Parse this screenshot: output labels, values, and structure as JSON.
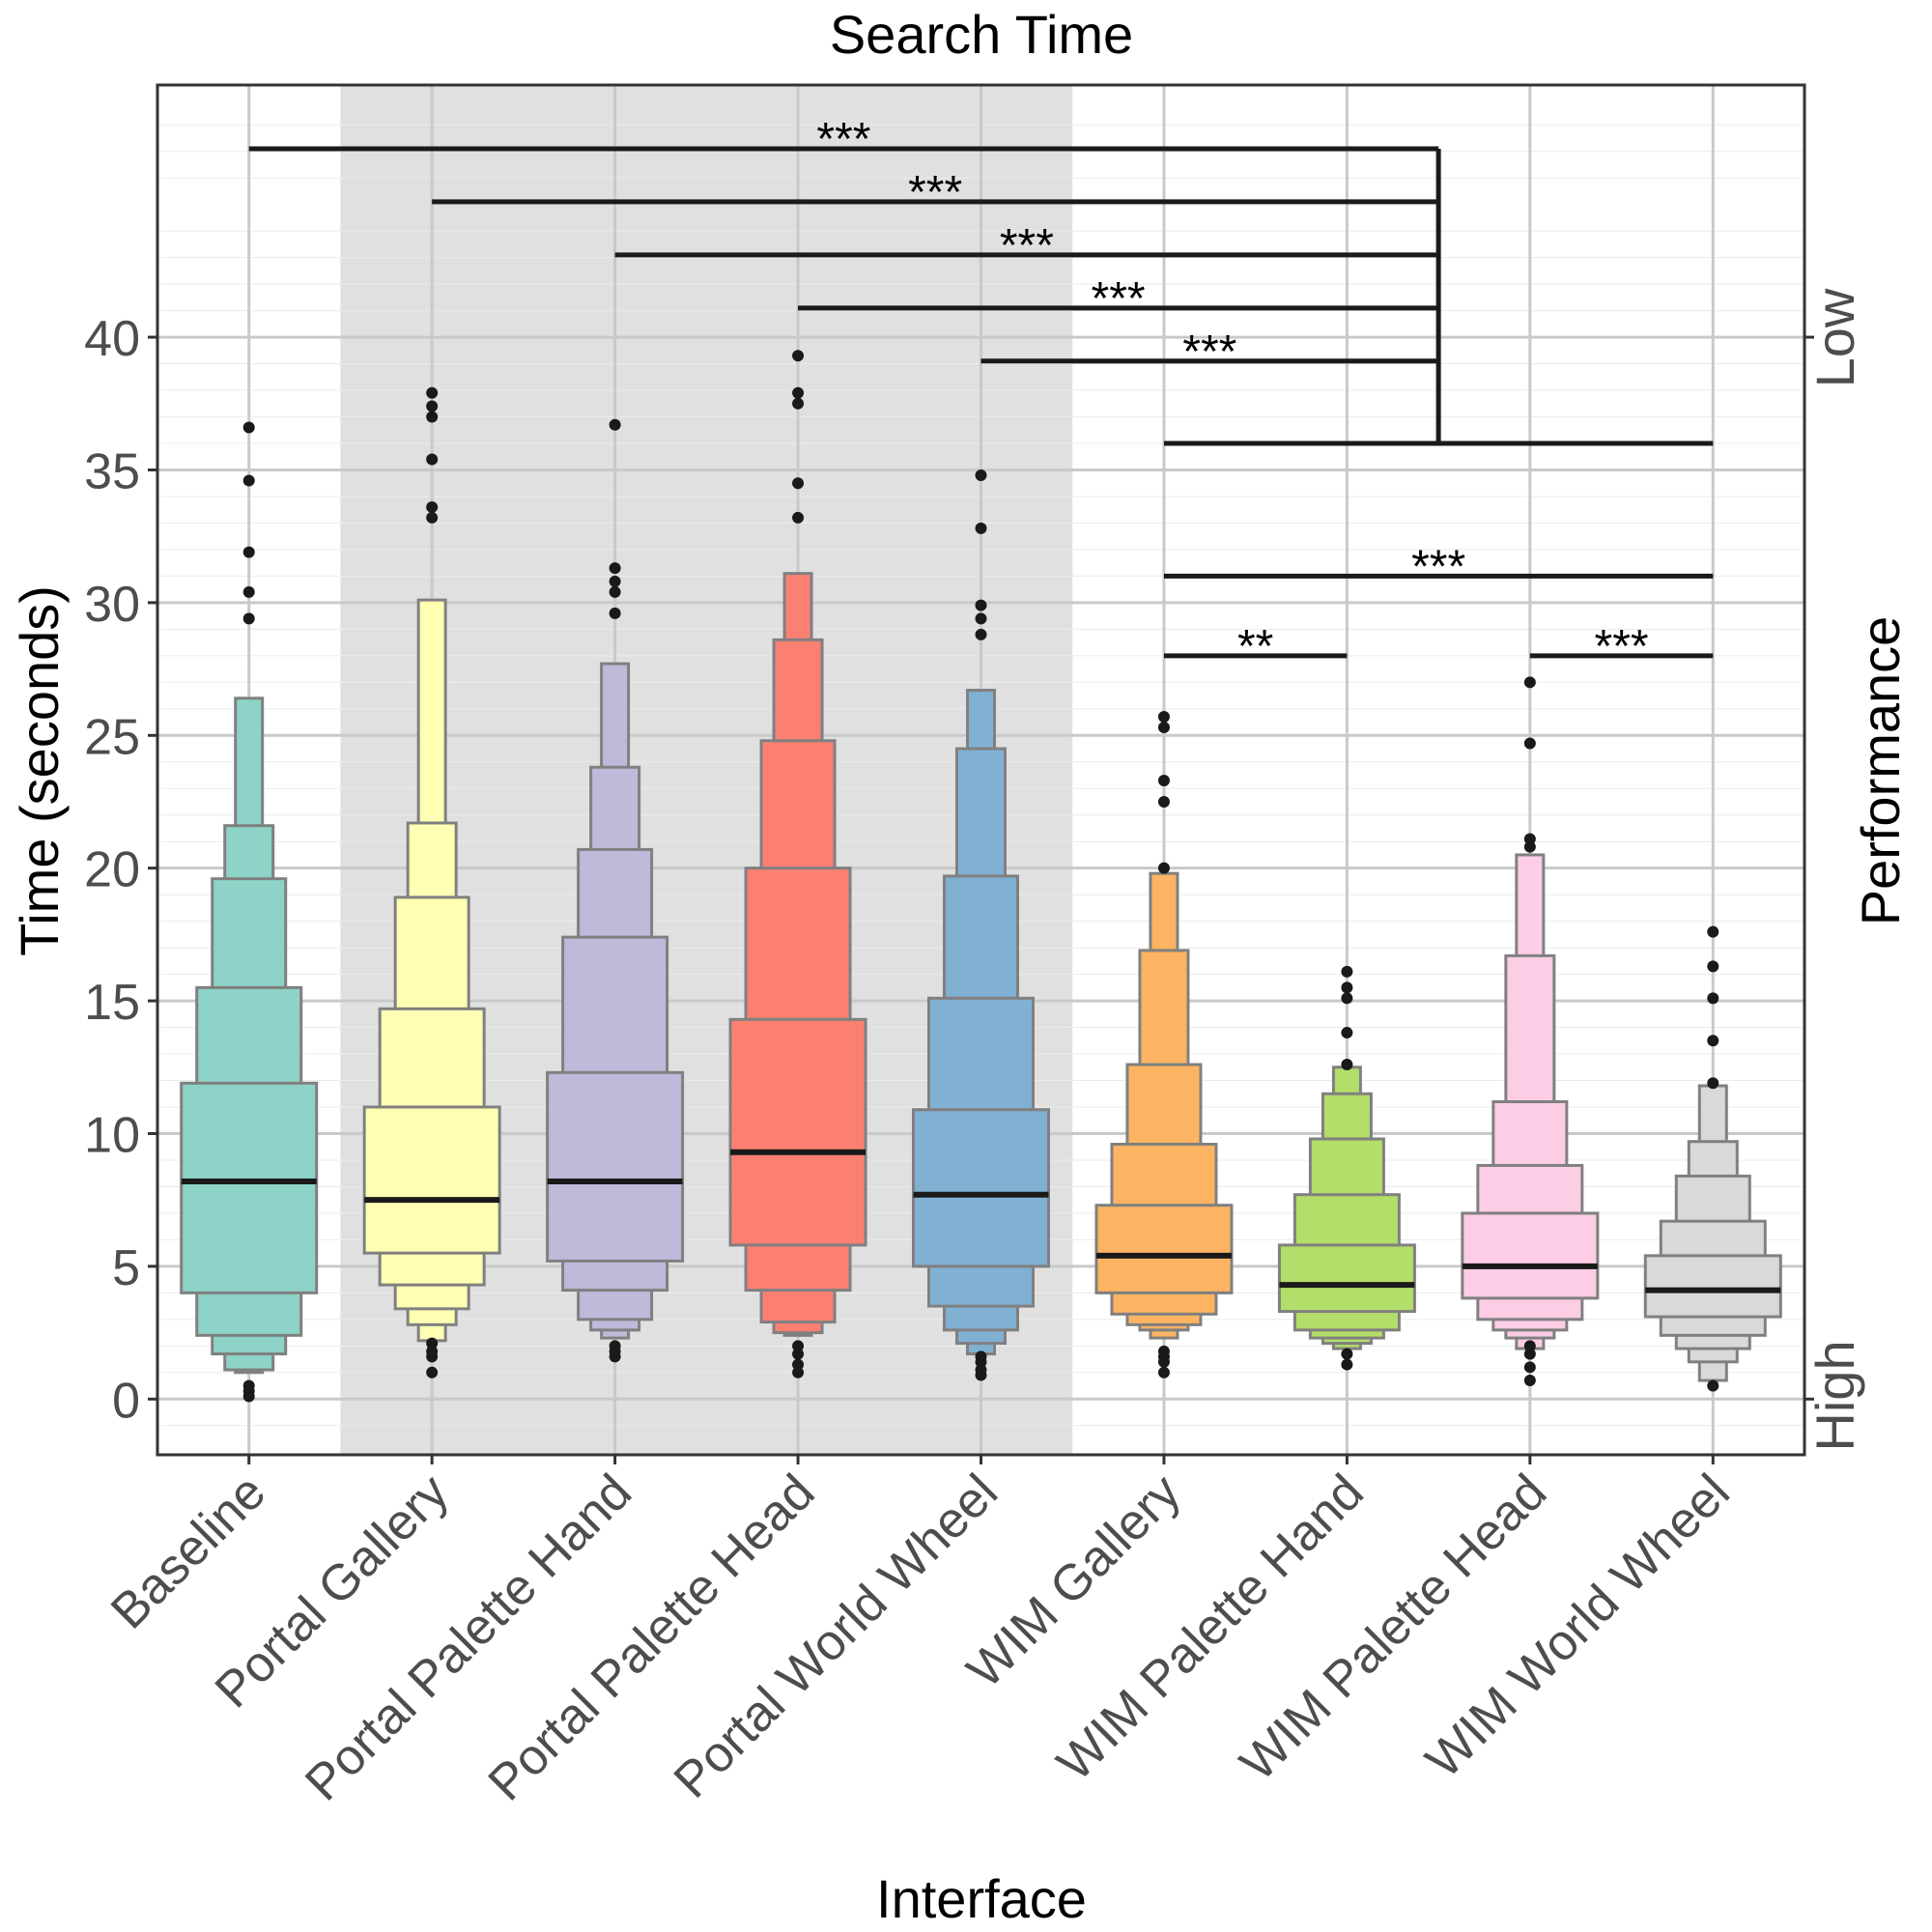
{
  "chart_data": {
    "type": "letter-value boxplot",
    "title": "Search Time",
    "xlabel": "Interface",
    "ylabel": "Time (seconds)",
    "secondary_axis": {
      "label": "Performance",
      "top": "Low",
      "bottom": "High"
    },
    "ylim": [
      -2.1,
      49.5
    ],
    "yticks": [
      0,
      5,
      10,
      15,
      20,
      25,
      30,
      35,
      40
    ],
    "shaded_group": [
      "Portal Gallery",
      "Portal Palette Hand",
      "Portal Palette Head",
      "Portal World Wheel"
    ],
    "categories": [
      "Baseline",
      "Portal Gallery",
      "Portal Palette Hand",
      "Portal Palette Head",
      "Portal World Wheel",
      "WIM Gallery",
      "WIM Palette Hand",
      "WIM Palette Head",
      "WIM World Wheel"
    ],
    "series": [
      {
        "name": "Baseline",
        "color": "#8dd3c7",
        "median": 8.2,
        "boxes": [
          [
            4.0,
            11.9
          ],
          [
            2.4,
            15.5
          ],
          [
            1.7,
            19.6
          ],
          [
            1.1,
            21.6
          ],
          [
            1.0,
            26.4
          ]
        ],
        "outliers": [
          0.1,
          0.3,
          0.5,
          29.4,
          30.4,
          31.9,
          34.6,
          36.6
        ]
      },
      {
        "name": "Portal Gallery",
        "color": "#ffffb3",
        "median": 7.5,
        "boxes": [
          [
            5.5,
            11.0
          ],
          [
            4.3,
            14.7
          ],
          [
            3.4,
            18.9
          ],
          [
            2.8,
            21.7
          ],
          [
            2.2,
            30.1
          ]
        ],
        "outliers": [
          1.0,
          1.6,
          1.8,
          2.1,
          33.2,
          33.6,
          35.4,
          37.0,
          37.4,
          37.9
        ]
      },
      {
        "name": "Portal Palette Hand",
        "color": "#bebada",
        "median": 8.2,
        "boxes": [
          [
            5.2,
            12.3
          ],
          [
            4.1,
            17.4
          ],
          [
            3.0,
            20.7
          ],
          [
            2.6,
            23.8
          ],
          [
            2.3,
            27.7
          ]
        ],
        "outliers": [
          1.6,
          1.8,
          2.0,
          29.6,
          30.4,
          30.8,
          31.3,
          36.7
        ]
      },
      {
        "name": "Portal Palette Head",
        "color": "#fb8072",
        "median": 9.3,
        "boxes": [
          [
            5.8,
            14.3
          ],
          [
            4.1,
            20.0
          ],
          [
            2.9,
            24.8
          ],
          [
            2.5,
            28.6
          ],
          [
            2.4,
            31.1
          ]
        ],
        "outliers": [
          1.0,
          1.3,
          1.7,
          2.0,
          33.2,
          34.5,
          37.5,
          37.9,
          39.3
        ]
      },
      {
        "name": "Portal World Wheel",
        "color": "#80b1d3",
        "median": 7.7,
        "boxes": [
          [
            5.0,
            10.9
          ],
          [
            3.5,
            15.1
          ],
          [
            2.6,
            19.7
          ],
          [
            2.1,
            24.5
          ],
          [
            1.7,
            26.7
          ]
        ],
        "outliers": [
          0.9,
          1.1,
          1.4,
          1.6,
          28.8,
          29.4,
          29.9,
          32.8,
          34.8
        ]
      },
      {
        "name": "WIM Gallery",
        "color": "#fdb462",
        "median": 5.4,
        "boxes": [
          [
            4.0,
            7.3
          ],
          [
            3.2,
            9.6
          ],
          [
            2.8,
            12.6
          ],
          [
            2.6,
            16.9
          ],
          [
            2.3,
            19.8
          ]
        ],
        "outliers": [
          1.0,
          1.4,
          1.6,
          1.8,
          20.0,
          22.5,
          23.3,
          25.3,
          25.7
        ]
      },
      {
        "name": "WIM Palette Hand",
        "color": "#b3de69",
        "median": 4.3,
        "boxes": [
          [
            3.3,
            5.8
          ],
          [
            2.6,
            7.7
          ],
          [
            2.3,
            9.8
          ],
          [
            2.1,
            11.5
          ],
          [
            1.9,
            12.5
          ]
        ],
        "outliers": [
          1.3,
          1.7,
          12.6,
          13.8,
          15.1,
          15.5,
          16.1
        ]
      },
      {
        "name": "WIM Palette Head",
        "color": "#fccde5",
        "median": 5.0,
        "boxes": [
          [
            3.8,
            7.0
          ],
          [
            3.0,
            8.8
          ],
          [
            2.6,
            11.2
          ],
          [
            2.3,
            16.7
          ],
          [
            1.9,
            20.5
          ]
        ],
        "outliers": [
          0.7,
          1.2,
          1.7,
          2.0,
          20.8,
          21.1,
          24.7,
          27.0
        ]
      },
      {
        "name": "WIM World Wheel",
        "color": "#d9d9d9",
        "median": 4.1,
        "boxes": [
          [
            3.1,
            5.4
          ],
          [
            2.4,
            6.7
          ],
          [
            1.9,
            8.4
          ],
          [
            1.4,
            9.7
          ],
          [
            0.7,
            11.8
          ]
        ],
        "outliers": [
          0.5,
          11.9,
          13.5,
          15.1,
          16.3,
          17.6
        ]
      }
    ],
    "significance": [
      {
        "from": "Baseline",
        "to": "Group WIM",
        "y": 47.1,
        "label": "***"
      },
      {
        "from": "Portal Gallery",
        "to": "Group WIM",
        "y": 45.1,
        "label": "***"
      },
      {
        "from": "Portal Palette Hand",
        "to": "Group WIM",
        "y": 43.1,
        "label": "***"
      },
      {
        "from": "Portal Palette Head",
        "to": "Group WIM",
        "y": 41.1,
        "label": "***"
      },
      {
        "from": "Portal World Wheel",
        "to": "Group WIM",
        "y": 39.1,
        "label": "***"
      },
      {
        "from": "WIM Gallery",
        "to": "WIM World Wheel",
        "y": 31.0,
        "label": "***"
      },
      {
        "from": "WIM Gallery",
        "to": "WIM Palette Hand",
        "y": 28.0,
        "label": "**"
      },
      {
        "from": "WIM Palette Head",
        "to": "WIM World Wheel",
        "y": 28.0,
        "label": "***"
      }
    ]
  }
}
